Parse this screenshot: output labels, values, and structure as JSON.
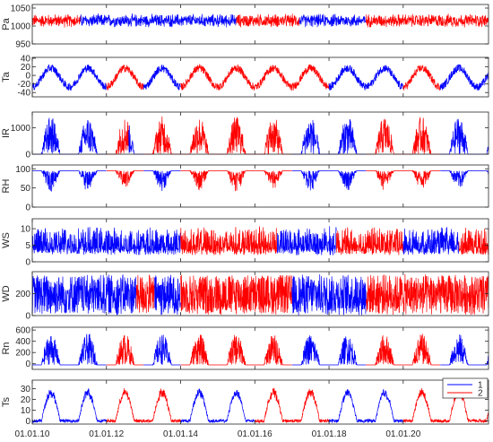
{
  "figure": {
    "background": "#ffffff",
    "axes_color": "#262626"
  },
  "chart_data": {
    "type": "line",
    "x_ticks": [
      "01.01.10",
      "01.01.12",
      "01.01.14",
      "01.01.16",
      "01.01.18",
      "01.01.20"
    ],
    "x_tick_values": [
      2010,
      2012,
      2014,
      2016,
      2018,
      2020
    ],
    "xlim": [
      2010,
      2022.3
    ],
    "legend": {
      "position": "upper-right of last panel",
      "entries": [
        {
          "name": "1",
          "color": "#0000ff"
        },
        {
          "name": "2",
          "color": "#ff0000"
        }
      ]
    },
    "series_colors": {
      "1": "#0000ff",
      "2": "#ff0000"
    },
    "panels": [
      {
        "ylabel": "Pa",
        "ylim": [
          950,
          1060
        ],
        "yticks": [
          "1050",
          "1000",
          "950"
        ],
        "ytick_values": [
          1050,
          1000,
          950
        ],
        "kind": "noise",
        "base": 1015,
        "amp": 14,
        "dominant": [
          {
            "from": 2010,
            "to": 2011.3,
            "series": "2"
          },
          {
            "from": 2011.3,
            "to": 2015.5,
            "series": "1"
          },
          {
            "from": 2015.5,
            "to": 2017.2,
            "series": "2"
          },
          {
            "from": 2017.2,
            "to": 2019,
            "series": "1"
          },
          {
            "from": 2019,
            "to": 2022.3,
            "series": "2"
          }
        ]
      },
      {
        "ylabel": "Ta",
        "ylim": [
          -50,
          42
        ],
        "yticks": [
          "40",
          "20",
          "0",
          "-20",
          "-40"
        ],
        "ytick_values": [
          40,
          20,
          0,
          -20,
          -40
        ],
        "kind": "seasonal_temp",
        "base": -5,
        "amp": 32,
        "dominant": [
          {
            "from": 2010,
            "to": 2012,
            "series": "1"
          },
          {
            "from": 2012,
            "to": 2013,
            "series": "2"
          },
          {
            "from": 2013,
            "to": 2014,
            "series": "1"
          },
          {
            "from": 2014,
            "to": 2018,
            "series": "2"
          },
          {
            "from": 2018,
            "to": 2020,
            "series": "1"
          },
          {
            "from": 2020,
            "to": 2021,
            "series": "2"
          },
          {
            "from": 2021,
            "to": 2022.3,
            "series": "1"
          }
        ]
      },
      {
        "ylabel": "IR",
        "ylim": [
          0,
          1600
        ],
        "yticks": [
          "1000",
          "0"
        ],
        "ytick_values": [
          1000,
          0
        ],
        "kind": "summer_hump",
        "base": 0,
        "amp": 1450,
        "dominant": [
          {
            "from": 2010,
            "to": 2012,
            "series": "1"
          },
          {
            "from": 2012,
            "to": 2012.6,
            "series": "2"
          },
          {
            "from": 2012.6,
            "to": 2013,
            "series": "1"
          },
          {
            "from": 2013,
            "to": 2014,
            "series": "2"
          },
          {
            "from": 2014,
            "to": 2017,
            "series": "2"
          },
          {
            "from": 2017,
            "to": 2019,
            "series": "1"
          },
          {
            "from": 2019,
            "to": 2021,
            "series": "2"
          },
          {
            "from": 2021,
            "to": 2022.3,
            "series": "1"
          }
        ]
      },
      {
        "ylabel": "RH",
        "ylim": [
          0,
          110
        ],
        "yticks": [
          "100",
          "50",
          "0"
        ],
        "ytick_values": [
          100,
          50,
          0
        ],
        "kind": "rh",
        "base": 95,
        "amp": 55,
        "dominant": [
          {
            "from": 2010,
            "to": 2012,
            "series": "1"
          },
          {
            "from": 2012,
            "to": 2013,
            "series": "2"
          },
          {
            "from": 2013,
            "to": 2014,
            "series": "1"
          },
          {
            "from": 2014,
            "to": 2017,
            "series": "2"
          },
          {
            "from": 2017,
            "to": 2019,
            "series": "1"
          },
          {
            "from": 2019,
            "to": 2021,
            "series": "2"
          },
          {
            "from": 2021,
            "to": 2022.3,
            "series": "1"
          }
        ]
      },
      {
        "ylabel": "WS",
        "ylim": [
          0,
          13
        ],
        "yticks": [
          "10",
          "5",
          "0"
        ],
        "ytick_values": [
          10,
          5,
          0
        ],
        "kind": "wind",
        "base": 3,
        "amp": 7,
        "dominant": [
          {
            "from": 2010,
            "to": 2014,
            "series": "1"
          },
          {
            "from": 2014,
            "to": 2016.6,
            "series": "2"
          },
          {
            "from": 2016.6,
            "to": 2018.2,
            "series": "1"
          },
          {
            "from": 2018.2,
            "to": 2020,
            "series": "2"
          },
          {
            "from": 2020,
            "to": 2021.5,
            "series": "1"
          },
          {
            "from": 2021.5,
            "to": 2022.3,
            "series": "2"
          }
        ]
      },
      {
        "ylabel": "WD",
        "ylim": [
          0,
          400
        ],
        "yticks": [
          "200",
          "0"
        ],
        "ytick_values": [
          200,
          0
        ],
        "kind": "direction",
        "base": 200,
        "amp": 200,
        "dominant": [
          {
            "from": 2010,
            "to": 2012.8,
            "series": "1"
          },
          {
            "from": 2012.8,
            "to": 2013.3,
            "series": "2"
          },
          {
            "from": 2013.3,
            "to": 2014,
            "series": "1"
          },
          {
            "from": 2014,
            "to": 2017,
            "series": "2"
          },
          {
            "from": 2017,
            "to": 2019,
            "series": "1"
          },
          {
            "from": 2019,
            "to": 2022.3,
            "series": "2"
          }
        ]
      },
      {
        "ylabel": "Rn",
        "ylim": [
          -100,
          650
        ],
        "yticks": [
          "600",
          "400",
          "200",
          "0"
        ],
        "ytick_values": [
          600,
          400,
          200,
          0
        ],
        "kind": "summer_hump",
        "base": -20,
        "amp": 560,
        "dominant": [
          {
            "from": 2010,
            "to": 2012,
            "series": "1"
          },
          {
            "from": 2012,
            "to": 2013,
            "series": "2"
          },
          {
            "from": 2013,
            "to": 2014,
            "series": "1"
          },
          {
            "from": 2014,
            "to": 2017,
            "series": "2"
          },
          {
            "from": 2017,
            "to": 2019,
            "series": "1"
          },
          {
            "from": 2019,
            "to": 2021,
            "series": "2"
          },
          {
            "from": 2021,
            "to": 2022.3,
            "series": "1"
          }
        ]
      },
      {
        "ylabel": "Ts",
        "ylim": [
          -3,
          38
        ],
        "yticks": [
          "30",
          "20",
          "10",
          "0"
        ],
        "ytick_values": [
          30,
          20,
          10,
          0
        ],
        "kind": "soil",
        "base": 0,
        "amp": 30,
        "dominant": [
          {
            "from": 2010,
            "to": 2012,
            "series": "1"
          },
          {
            "from": 2012,
            "to": 2014,
            "series": "2"
          },
          {
            "from": 2014,
            "to": 2016,
            "series": "1"
          },
          {
            "from": 2016,
            "to": 2018,
            "series": "2"
          },
          {
            "from": 2018,
            "to": 2020,
            "series": "1"
          },
          {
            "from": 2020,
            "to": 2022.3,
            "series": "2"
          }
        ]
      }
    ]
  }
}
